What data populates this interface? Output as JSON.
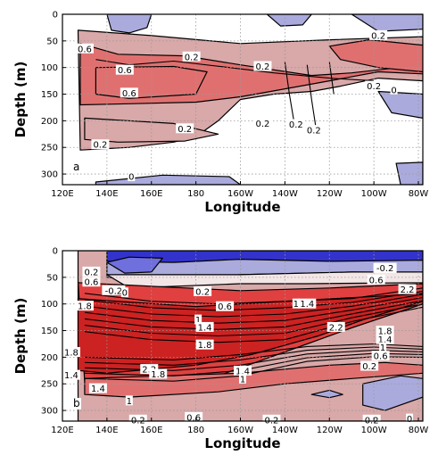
{
  "colors": {
    "light_red": "#d9a8a8",
    "mid_red": "#e07070",
    "strong_red": "#e04040",
    "deep_red": "#cc2222",
    "light_blue": "#aaaadd",
    "mid_blue": "#6f6fdd",
    "strong_blue": "#3333cc",
    "grid": "#999999"
  },
  "chart_data": [
    {
      "type": "contour",
      "panel": "a",
      "xlabel": "Longitude",
      "ylabel": "Depth (m)",
      "x_tick_labels": [
        "120E",
        "140E",
        "160E",
        "180",
        "160W",
        "140W",
        "120W",
        "100W",
        "80W"
      ],
      "x_ticks_lon_east": [
        120,
        140,
        160,
        180,
        200,
        220,
        240,
        260,
        280
      ],
      "y_ticks": [
        0,
        50,
        100,
        150,
        200,
        250,
        300
      ],
      "ylim": [
        320,
        0
      ],
      "xlim_lon_east": [
        120,
        282
      ],
      "grid": true,
      "contour_labels": [
        {
          "text": "0.6",
          "lon": 130,
          "depth": 65
        },
        {
          "text": "0.6",
          "lon": 148,
          "depth": 105
        },
        {
          "text": "0.6",
          "lon": 150,
          "depth": 148
        },
        {
          "text": "0.2",
          "lon": 178,
          "depth": 80
        },
        {
          "text": "0.2",
          "lon": 210,
          "depth": 98
        },
        {
          "text": "0.2",
          "lon": 262,
          "depth": 40
        },
        {
          "text": "0.2",
          "lon": 260,
          "depth": 135
        },
        {
          "text": "0",
          "lon": 269,
          "depth": 142
        },
        {
          "text": "0.2",
          "lon": 175,
          "depth": 215
        },
        {
          "text": "0.2",
          "lon": 210,
          "depth": 205
        },
        {
          "text": "0.2",
          "lon": 225,
          "depth": 207
        },
        {
          "text": "0.2",
          "lon": 233,
          "depth": 218
        },
        {
          "text": "0.2",
          "lon": 137,
          "depth": 245
        },
        {
          "text": "0",
          "lon": 151,
          "depth": 305
        }
      ]
    },
    {
      "type": "contour",
      "panel": "b",
      "xlabel": "Longitude",
      "ylabel": "Depth (m)",
      "x_tick_labels": [
        "120E",
        "140E",
        "160E",
        "180",
        "160W",
        "140W",
        "120W",
        "100W",
        "80W"
      ],
      "x_ticks_lon_east": [
        120,
        140,
        160,
        180,
        200,
        220,
        240,
        260,
        280
      ],
      "y_ticks": [
        0,
        50,
        100,
        150,
        200,
        250,
        300
      ],
      "ylim": [
        320,
        0
      ],
      "xlim_lon_east": [
        120,
        282
      ],
      "grid": true,
      "contour_labels": [
        {
          "text": "0.2",
          "lon": 133,
          "depth": 40
        },
        {
          "text": "0.6",
          "lon": 133,
          "depth": 59
        },
        {
          "text": "-0.2",
          "lon": 143,
          "depth": 75
        },
        {
          "text": "0",
          "lon": 148,
          "depth": 79
        },
        {
          "text": "1.8",
          "lon": 130,
          "depth": 104
        },
        {
          "text": "0.2",
          "lon": 183,
          "depth": 77
        },
        {
          "text": "0.6",
          "lon": 193,
          "depth": 105
        },
        {
          "text": "1",
          "lon": 181,
          "depth": 130
        },
        {
          "text": "1.4",
          "lon": 184,
          "depth": 144
        },
        {
          "text": "1.8",
          "lon": 184,
          "depth": 177
        },
        {
          "text": "1",
          "lon": 225,
          "depth": 100
        },
        {
          "text": "1.4",
          "lon": 230,
          "depth": 100
        },
        {
          "text": "2.2",
          "lon": 243,
          "depth": 144
        },
        {
          "text": "2.2",
          "lon": 275,
          "depth": 73
        },
        {
          "text": "-0.2",
          "lon": 265,
          "depth": 33
        },
        {
          "text": "0.6",
          "lon": 261,
          "depth": 55
        },
        {
          "text": "1.8",
          "lon": 265,
          "depth": 151
        },
        {
          "text": "1.4",
          "lon": 265,
          "depth": 167
        },
        {
          "text": "1",
          "lon": 264,
          "depth": 182
        },
        {
          "text": "0.6",
          "lon": 263,
          "depth": 198
        },
        {
          "text": "0.2",
          "lon": 258,
          "depth": 217
        },
        {
          "text": "1.8",
          "lon": 124,
          "depth": 191
        },
        {
          "text": "1.4",
          "lon": 124,
          "depth": 234
        },
        {
          "text": "2.2",
          "lon": 159,
          "depth": 223
        },
        {
          "text": "1.8",
          "lon": 163,
          "depth": 232
        },
        {
          "text": "1.4",
          "lon": 136,
          "depth": 259
        },
        {
          "text": "1.4",
          "lon": 201,
          "depth": 226
        },
        {
          "text": "1",
          "lon": 201,
          "depth": 241
        },
        {
          "text": "1",
          "lon": 150,
          "depth": 282
        },
        {
          "text": "0.6",
          "lon": 179,
          "depth": 313
        },
        {
          "text": "0.2",
          "lon": 154,
          "depth": 338
        },
        {
          "text": "0.2",
          "lon": 214,
          "depth": 346
        },
        {
          "text": "0",
          "lon": 276,
          "depth": 316
        },
        {
          "text": "0.2",
          "lon": 259,
          "depth": 372
        }
      ]
    }
  ]
}
